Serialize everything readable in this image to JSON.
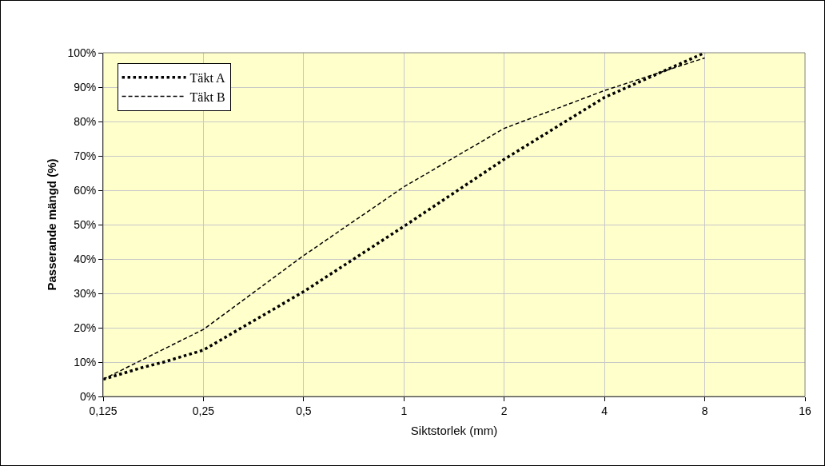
{
  "chart_data": {
    "type": "line",
    "xlabel": "Siktstorlek (mm)",
    "ylabel": "Passerande mängd (%)",
    "log": "x",
    "grid": true,
    "legend": "top left",
    "marker": "none",
    "xlim": [
      0.125,
      16
    ],
    "xticks": [
      {
        "value": 0.125,
        "label": "0,125"
      },
      {
        "value": 0.25,
        "label": "0,25"
      },
      {
        "value": 0.5,
        "label": "0,5"
      },
      1,
      2,
      4,
      8,
      16
    ],
    "ylim": [
      0,
      100
    ],
    "yticks": [
      {
        "value": 0,
        "label": "0%"
      },
      {
        "value": 10,
        "label": "10%"
      },
      {
        "value": 20,
        "label": "20%"
      },
      {
        "value": 30,
        "label": "30%"
      },
      {
        "value": 40,
        "label": "40%"
      },
      {
        "value": 50,
        "label": "50%"
      },
      {
        "value": 60,
        "label": "60%"
      },
      {
        "value": 70,
        "label": "70%"
      },
      {
        "value": 80,
        "label": "80%"
      },
      {
        "value": 90,
        "label": "90%"
      },
      {
        "value": 100,
        "label": "100%"
      }
    ],
    "series": [
      {
        "name": "Täkt A",
        "color": "#000000",
        "line_style": "dotted",
        "x": [
          0.125,
          0.165,
          0.19,
          0.25,
          0.5,
          1,
          2,
          4,
          8
        ],
        "values": [
          5,
          8.5,
          10,
          13.5,
          30.5,
          49.5,
          69,
          87,
          100
        ]
      },
      {
        "name": "Täkt B",
        "color": "#000000",
        "line_style": "dashed",
        "x": [
          0.125,
          0.25,
          0.5,
          1,
          2,
          4,
          8
        ],
        "values": [
          5,
          19.5,
          41,
          61,
          78,
          89,
          98.5
        ]
      }
    ]
  }
}
